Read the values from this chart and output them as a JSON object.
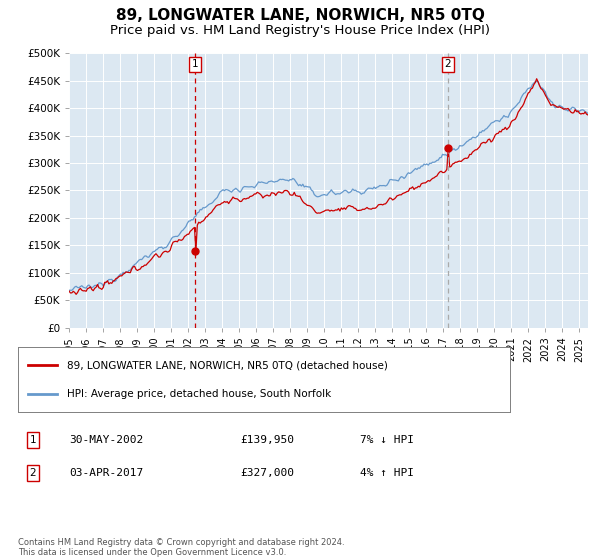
{
  "title": "89, LONGWATER LANE, NORWICH, NR5 0TQ",
  "subtitle": "Price paid vs. HM Land Registry's House Price Index (HPI)",
  "title_fontsize": 11,
  "subtitle_fontsize": 9.5,
  "ylabel_ticks": [
    "£0",
    "£50K",
    "£100K",
    "£150K",
    "£200K",
    "£250K",
    "£300K",
    "£350K",
    "£400K",
    "£450K",
    "£500K"
  ],
  "ytick_vals": [
    0,
    50000,
    100000,
    150000,
    200000,
    250000,
    300000,
    350000,
    400000,
    450000,
    500000
  ],
  "ylim": [
    0,
    500000
  ],
  "xlim_start": 1995.0,
  "xlim_end": 2025.5,
  "bg_color": "#dce8f2",
  "line_color_red": "#cc0000",
  "line_color_blue": "#6699cc",
  "vline1_color": "#cc0000",
  "vline2_color": "#aaaaaa",
  "marker1_x": 2002.42,
  "marker2_x": 2017.25,
  "marker1_price": 139950,
  "marker2_price": 327000,
  "legend_label_red": "89, LONGWATER LANE, NORWICH, NR5 0TQ (detached house)",
  "legend_label_blue": "HPI: Average price, detached house, South Norfolk",
  "annotation1_date": "30-MAY-2002",
  "annotation1_price": "£139,950",
  "annotation1_hpi": "7% ↓ HPI",
  "annotation2_date": "03-APR-2017",
  "annotation2_price": "£327,000",
  "annotation2_hpi": "4% ↑ HPI",
  "footnote": "Contains HM Land Registry data © Crown copyright and database right 2024.\nThis data is licensed under the Open Government Licence v3.0."
}
